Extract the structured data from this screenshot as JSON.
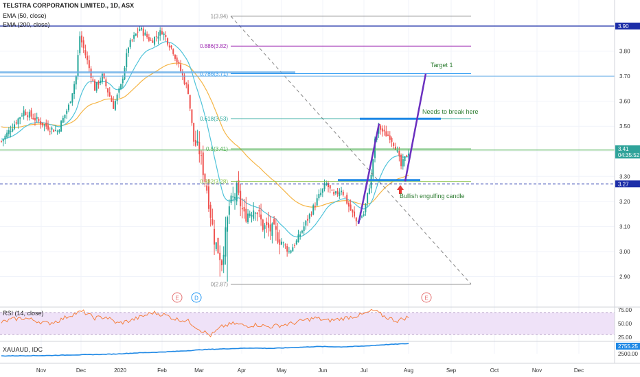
{
  "header": {
    "title": "TELSTRA CORPORATION LIMITED., 1D, ASX",
    "ema50_label": "EMA (50, close)",
    "ema200_label": "EMA (200, close)"
  },
  "rsi_panel": {
    "label": "RSI (14, close)",
    "ticks": [
      "75.00",
      "50.00",
      "25.00"
    ],
    "upper": 70,
    "lower": 30
  },
  "xau_panel": {
    "label": "XAUAUD, IDC",
    "ticks": [
      "2755.25",
      "2500.00"
    ],
    "last": "2755.25"
  },
  "x_axis_labels": [
    "Nov",
    "Dec",
    "2020",
    "Feb",
    "Mar",
    "Apr",
    "May",
    "Jun",
    "Jul",
    "Aug",
    "Sep",
    "Oct",
    "Nov",
    "Dec"
  ],
  "price_axis": {
    "ticks": [
      "3.80",
      "3.70",
      "3.60",
      "3.50",
      "3.40",
      "3.30",
      "3.20",
      "3.10",
      "3.00",
      "2.90"
    ],
    "badges": [
      {
        "text": "3.90",
        "price": 3.9,
        "bg": "#1c2ea8",
        "fg": "#ffffff"
      },
      {
        "text": "3.41",
        "price": 3.41,
        "bg": "#2fa39a",
        "fg": "#ffffff"
      },
      {
        "text": "04:35:52",
        "price": 3.385,
        "bg": "#2fa39a",
        "fg": "#ffffff"
      },
      {
        "text": "3.27",
        "price": 3.27,
        "bg": "#1c2ea8",
        "fg": "#ffffff"
      }
    ]
  },
  "fib_levels": [
    {
      "label": "1(3.94)",
      "price": 3.94,
      "color": "#888888"
    },
    {
      "label": "0.886(3.82)",
      "price": 3.82,
      "color": "#9c27b0"
    },
    {
      "label": "0.786(3.71)",
      "price": 3.71,
      "color": "#2196f3"
    },
    {
      "label": "0.618(3.53)",
      "price": 3.53,
      "color": "#26a69a"
    },
    {
      "label": "0.5(3.41)",
      "price": 3.41,
      "color": "#4caf50"
    },
    {
      "label": "0.382(3.28)",
      "price": 3.28,
      "color": "#8bc34a"
    },
    {
      "label": "0(2.87)",
      "price": 2.87,
      "color": "#888888"
    }
  ],
  "annotations": {
    "target": "Target 1",
    "needs_break": "Needs to break here",
    "bullish": "Bullish engulfing candle"
  },
  "event_markers": [
    {
      "label": "E",
      "color": "#e57373"
    },
    {
      "label": "D",
      "color": "#2196f3"
    },
    {
      "label": "E",
      "color": "#e57373"
    }
  ],
  "colors": {
    "up": "#26a69a",
    "down": "#ef5350",
    "ema50": "#4fc3d9",
    "ema200": "#f5b546",
    "rsi": "#f5803e",
    "xau": "#1e88e5",
    "blue_line": "#1c2ea8",
    "purple": "#6a2fbf"
  },
  "chart_data": {
    "type": "candlestick",
    "title": "TELSTRA CORPORATION LIMITED., 1D, ASX",
    "x": [
      "Nov",
      "Dec",
      "2020",
      "Feb",
      "Mar",
      "Apr",
      "May",
      "Jun",
      "Jul",
      "Aug",
      "Sep",
      "Oct",
      "Nov",
      "Dec"
    ],
    "ylim": [
      2.86,
      3.98
    ],
    "series": [
      {
        "name": "EMA (50, close)"
      },
      {
        "name": "EMA (200, close)"
      }
    ],
    "close_path": [
      3.46,
      3.55,
      3.58,
      3.55,
      3.5,
      3.56,
      3.6,
      3.72,
      3.86,
      3.76,
      3.66,
      3.7,
      3.58,
      3.68,
      3.84,
      3.9,
      3.85,
      3.88,
      3.76,
      3.7,
      3.45,
      3.15,
      2.95,
      3.2,
      3.18,
      3.1,
      3.08,
      3.05,
      3.06,
      3.02,
      3.12,
      3.22,
      3.28,
      3.24,
      3.18,
      3.12,
      3.35,
      3.5,
      3.45,
      3.38,
      3.35,
      3.41
    ],
    "rsi_path": [
      52,
      58,
      60,
      55,
      50,
      56,
      66,
      72,
      60,
      62,
      50,
      55,
      62,
      70,
      66,
      58,
      55,
      40,
      28,
      45,
      50,
      46,
      48,
      44,
      47,
      50,
      56,
      60,
      55,
      58,
      62,
      66,
      74,
      62,
      55,
      62
    ],
    "xau_path": [
      2100,
      2110,
      2120,
      2150,
      2170,
      2200,
      2260,
      2300,
      2360,
      2440,
      2480,
      2520,
      2500,
      2550,
      2600,
      2580,
      2620,
      2700,
      2755
    ]
  }
}
